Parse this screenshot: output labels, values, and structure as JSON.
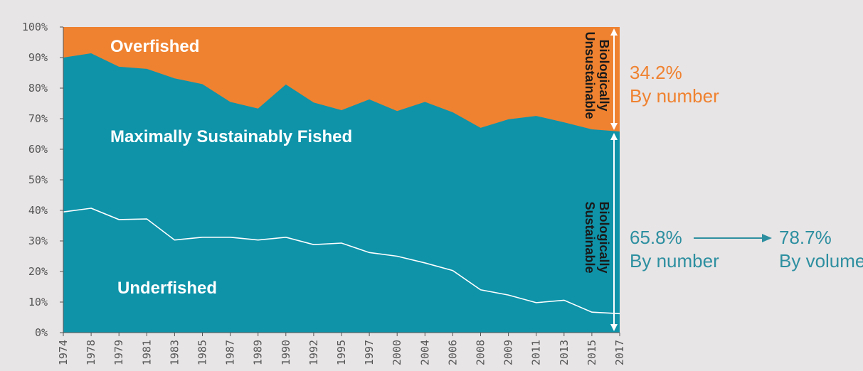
{
  "chart_data": {
    "type": "area",
    "x": [
      "1974",
      "1978",
      "1979",
      "1981",
      "1983",
      "1985",
      "1987",
      "1989",
      "1990",
      "1992",
      "1995",
      "1997",
      "2000",
      "2004",
      "2006",
      "2008",
      "2009",
      "2011",
      "2013",
      "2015",
      "2017"
    ],
    "series": [
      {
        "name": "Underfished",
        "values": [
          39.5,
          40.7,
          37.0,
          37.2,
          30.3,
          31.2,
          31.2,
          30.3,
          31.2,
          28.8,
          29.3,
          26.2,
          25.0,
          22.8,
          20.3,
          14.0,
          12.3,
          9.8,
          10.6,
          6.7,
          6.2
        ]
      },
      {
        "name": "Maximally Sustainably Fished",
        "values": [
          50.5,
          50.7,
          50.0,
          49.1,
          52.9,
          50.1,
          44.3,
          43.0,
          50.0,
          46.5,
          43.5,
          50.1,
          47.5,
          52.7,
          51.8,
          53.0,
          57.5,
          61.1,
          58.2,
          59.8,
          59.6
        ]
      },
      {
        "name": "Overfished",
        "values": [
          10.0,
          8.6,
          13.0,
          13.7,
          16.8,
          18.7,
          24.5,
          26.7,
          18.8,
          24.7,
          27.2,
          23.7,
          27.5,
          24.5,
          27.9,
          33.0,
          30.2,
          29.1,
          31.2,
          33.5,
          34.2
        ]
      }
    ],
    "y_ticks": [
      "0%",
      "10%",
      "20%",
      "30%",
      "40%",
      "50%",
      "60%",
      "70%",
      "80%",
      "90%",
      "100%"
    ],
    "ylim": [
      0,
      100
    ],
    "legend": "in-area labels",
    "colors": {
      "underfished_line": "#ffffff",
      "sustainable": "#0e93a9",
      "overfished": "#ef8230",
      "background": "#e8e5e6"
    }
  },
  "labels": {
    "overfished": "Overfished",
    "max_sustainable": "Maximally Sustainably Fished",
    "underfished": "Underfished",
    "unsustainable_line1": "Biologically",
    "unsustainable_line2": "Unsustainable",
    "sustainable_line1": "Biologically",
    "sustainable_line2": "Sustainable"
  },
  "annotations": {
    "overfished_pct": "34.2%",
    "overfished_by": "By number",
    "sustainable_pct": "65.8%",
    "sustainable_by": "By number",
    "volume_pct": "78.7%",
    "volume_by": "By volume"
  }
}
